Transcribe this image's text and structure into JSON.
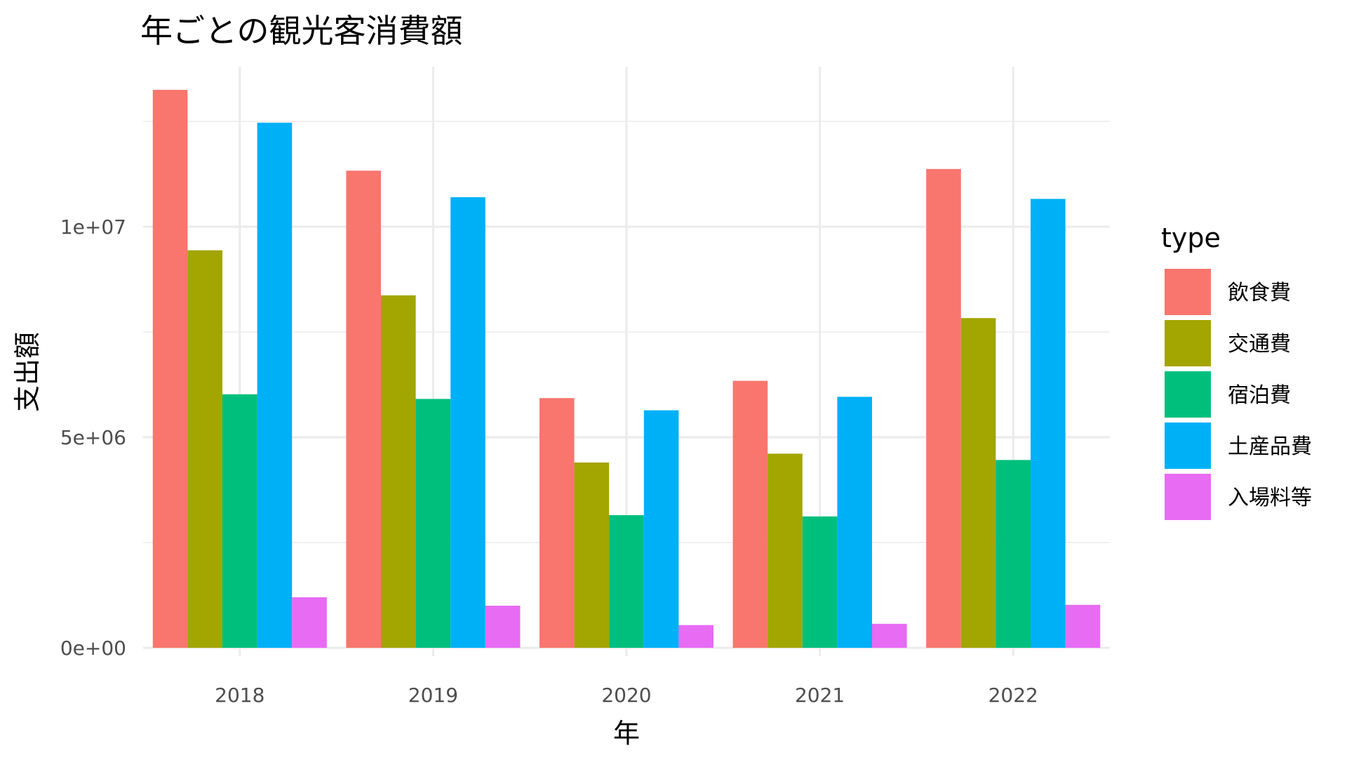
{
  "chart_data": {
    "type": "bar",
    "title": "年ごとの観光客消費額",
    "xlabel": "年",
    "ylabel": "支出額",
    "categories": [
      "2018",
      "2019",
      "2020",
      "2021",
      "2022"
    ],
    "ylim": [
      -200000,
      13800000
    ],
    "y_ticks": [
      {
        "value": 0,
        "label": "0e+00"
      },
      {
        "value": 5000000,
        "label": "5e+06"
      },
      {
        "value": 10000000,
        "label": "1e+07"
      }
    ],
    "y_minor_ticks": [
      2500000,
      7500000,
      12500000
    ],
    "grid": true,
    "legend": {
      "title": "type",
      "position": "right"
    },
    "series": [
      {
        "name": "飲食費",
        "color": "#F8766D",
        "values": [
          13250000,
          11330000,
          5930000,
          6340000,
          11370000
        ]
      },
      {
        "name": "交通費",
        "color": "#A3A500",
        "values": [
          9440000,
          8370000,
          4400000,
          4610000,
          7830000
        ]
      },
      {
        "name": "宿泊費",
        "color": "#00BF7D",
        "values": [
          6020000,
          5910000,
          3150000,
          3120000,
          4460000
        ]
      },
      {
        "name": "土産品費",
        "color": "#00B0F6",
        "values": [
          12470000,
          10700000,
          5640000,
          5960000,
          10660000
        ]
      },
      {
        "name": "入場料等",
        "color": "#E76BF3",
        "values": [
          1200000,
          1000000,
          540000,
          570000,
          1020000
        ]
      }
    ]
  }
}
